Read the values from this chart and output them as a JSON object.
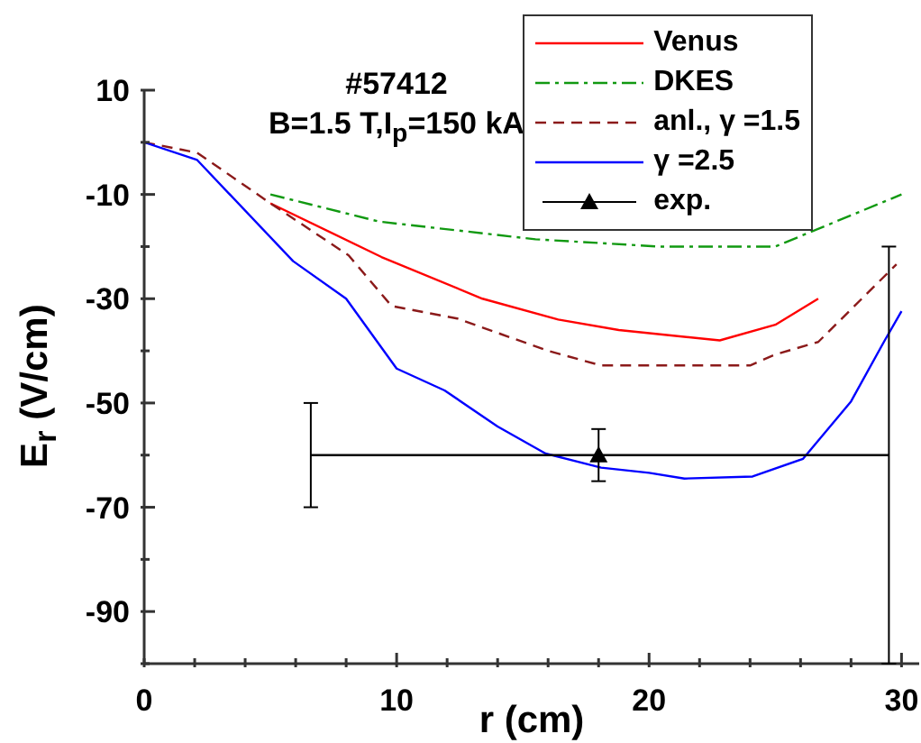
{
  "chart_data": {
    "type": "line",
    "title": "#57412",
    "subtitle": "B=1.5 T,I$_{p}$=150 kA",
    "xlabel": "r (cm)",
    "ylabel": "E$_{r}$ (V/cm)",
    "xlim": [
      0,
      30.7
    ],
    "ylim": [
      -100,
      10
    ],
    "xticks": [
      0,
      {
        "value": 2,
        "label": null
      },
      {
        "value": 4,
        "label": null
      },
      {
        "value": 6,
        "label": null
      },
      {
        "value": 8,
        "label": null
      },
      10,
      {
        "value": 12,
        "label": null
      },
      {
        "value": 14,
        "label": null
      },
      {
        "value": 16,
        "label": null
      },
      {
        "value": 18,
        "label": null
      },
      20,
      {
        "value": 22,
        "label": null
      },
      {
        "value": 24,
        "label": null
      },
      {
        "value": 26,
        "label": null
      },
      {
        "value": 28,
        "label": null
      },
      30
    ],
    "yticks": [
      {
        "value": -100,
        "label": null
      },
      -90,
      {
        "value": -80,
        "label": null
      },
      -70,
      {
        "value": -60,
        "label": null
      },
      -50,
      {
        "value": -40,
        "label": null
      },
      -30,
      {
        "value": -20,
        "label": null
      },
      -10,
      {
        "value": 0,
        "label": null
      },
      10
    ],
    "legend": "top right",
    "series": [
      {
        "name": "Venus",
        "color": "#ff0000",
        "line_style": "solid",
        "x": [
          5,
          9.4,
          13.4,
          16.4,
          18.8,
          22.8,
          25,
          26.7
        ],
        "values": [
          -11.7,
          -22,
          -30,
          -34,
          -36,
          -38,
          -35,
          -30
        ]
      },
      {
        "name": "DKES",
        "color": "#119911",
        "line_style": "dashdot",
        "x": [
          5,
          9.3,
          15.5,
          20.4,
          25,
          30
        ],
        "values": [
          -10,
          -15.2,
          -18.6,
          -20,
          -20,
          -10
        ]
      },
      {
        "name": "anl., γ =1.5",
        "color": "#8b1a1a",
        "line_style": "dashed",
        "x": [
          0,
          2.1,
          5,
          8.1,
          9.8,
          12.4,
          16,
          18.1,
          24,
          25,
          26.7,
          29.8
        ],
        "values": [
          0,
          -2,
          -11.7,
          -21.7,
          -31.4,
          -33.8,
          -40,
          -42.8,
          -42.8,
          -40.7,
          -38.3,
          -23.4
        ]
      },
      {
        "name": "γ =2.5",
        "color": "#0000ff",
        "line_style": "solid",
        "x": [
          0,
          2.1,
          5.9,
          8,
          10,
          11.9,
          14,
          15.9,
          18.1,
          20,
          21.4,
          24.1,
          26.1,
          28,
          29.3,
          30
        ],
        "values": [
          0,
          -3.4,
          -22.8,
          -30,
          -43.4,
          -47.6,
          -54.5,
          -59.7,
          -62.4,
          -63.4,
          -64.5,
          -64.1,
          -60.7,
          -49.7,
          -38.3,
          -32.4
        ]
      },
      {
        "name": "exp.",
        "type": "scatter",
        "color": "#000000",
        "marker": "triangle",
        "x": [
          18
        ],
        "values": [
          -60
        ],
        "errors": [
          [
            -65,
            -55
          ]
        ]
      },
      {
        "type": "line",
        "color": "#000000",
        "line_style": "solid",
        "x": [
          6.6,
          29.5
        ],
        "values": [
          -60,
          -60
        ],
        "errors": [
          [
            -70,
            -50
          ],
          [
            -100,
            -20
          ]
        ]
      }
    ]
  }
}
